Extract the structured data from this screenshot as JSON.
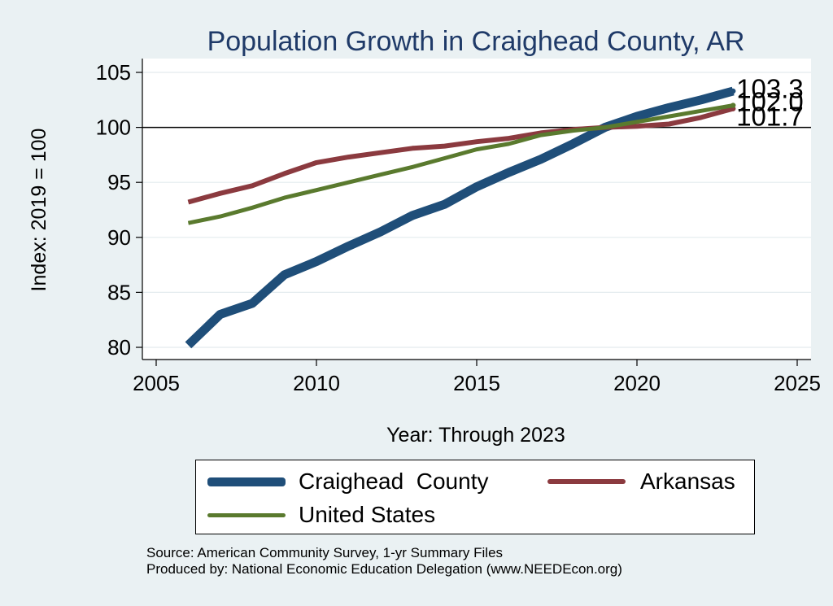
{
  "chart_data": {
    "type": "line",
    "title": "Population Growth in Craighead County, AR",
    "xlabel": "Year: Through 2023",
    "ylabel": "Index: 2019 = 100",
    "xlim": [
      2005,
      2025
    ],
    "ylim": [
      79,
      106
    ],
    "xticks": [
      2005,
      2010,
      2015,
      2020,
      2025
    ],
    "yticks": [
      80,
      85,
      90,
      95,
      100,
      105
    ],
    "reference_line": 100,
    "x": [
      2006,
      2007,
      2008,
      2009,
      2010,
      2011,
      2012,
      2013,
      2014,
      2015,
      2016,
      2017,
      2018,
      2019,
      2020,
      2021,
      2022,
      2023
    ],
    "series": [
      {
        "name": "Craighead  County",
        "color": "#1f4e79",
        "values": [
          80.2,
          83.0,
          84.0,
          86.6,
          87.8,
          89.2,
          90.5,
          92.0,
          93.0,
          94.6,
          95.9,
          97.1,
          98.5,
          100.0,
          101.0,
          101.8,
          102.5,
          103.3
        ],
        "end_label": "103.3"
      },
      {
        "name": "Arkansas",
        "color": "#8b3a3f",
        "values": [
          93.2,
          94.0,
          94.7,
          95.8,
          96.8,
          97.3,
          97.7,
          98.1,
          98.3,
          98.7,
          99.0,
          99.5,
          99.8,
          100.0,
          100.1,
          100.3,
          100.9,
          101.7
        ],
        "end_label": "101.7"
      },
      {
        "name": "United States",
        "color": "#5a7a2e",
        "values": [
          91.3,
          91.9,
          92.7,
          93.6,
          94.3,
          95.0,
          95.7,
          96.4,
          97.2,
          98.0,
          98.5,
          99.3,
          99.7,
          100.0,
          100.5,
          101.0,
          101.5,
          102.0
        ],
        "end_label": "102.0"
      }
    ],
    "legend": {
      "position": "bottom",
      "entries": [
        {
          "label": "Craighead  County",
          "color": "#1f4e79"
        },
        {
          "label": "Arkansas",
          "color": "#8b3a3f"
        },
        {
          "label": "United States",
          "color": "#5a7a2e"
        }
      ]
    }
  },
  "source": {
    "line1": "Source: American Community Survey, 1-yr Summary Files",
    "line2": "Produced by: National Economic Education Delegation (www.NEEDEcon.org)"
  }
}
